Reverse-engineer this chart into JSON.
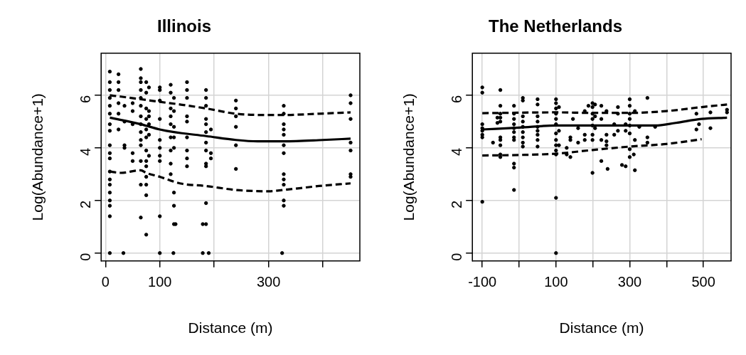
{
  "chart_data": [
    {
      "type": "scatter",
      "title": "Illinois",
      "xlabel": "Distance (m)",
      "ylabel": "Log(Abundance+1)",
      "xlim": [
        -8,
        468
      ],
      "ylim": [
        -0.3,
        7.6
      ],
      "xticks": [
        0,
        100,
        {
          "value": 200,
          "label": null
        },
        300,
        {
          "value": 400,
          "label": null
        }
      ],
      "yticks": [
        0,
        2,
        4,
        6
      ],
      "grid": true,
      "series": [
        {
          "type": "scatter",
          "marker": "circle",
          "color": "#000000",
          "x": [
            8,
            8,
            8,
            8,
            8,
            8,
            8,
            8,
            8,
            8,
            8,
            8,
            8,
            8,
            8,
            8,
            8,
            8,
            8,
            24,
            24,
            24,
            24,
            24,
            24,
            33,
            35,
            35,
            35,
            35,
            50,
            50,
            50,
            50,
            50,
            65,
            65,
            65,
            65,
            65,
            65,
            65,
            65,
            65,
            65,
            65,
            65,
            65,
            65,
            75,
            75,
            75,
            75,
            75,
            75,
            75,
            75,
            75,
            75,
            75,
            75,
            75,
            80,
            80,
            80,
            80,
            80,
            80,
            100,
            100,
            100,
            100,
            100,
            100,
            100,
            100,
            100,
            100,
            120,
            120,
            120,
            120,
            120,
            120,
            120,
            120,
            120,
            126,
            126,
            126,
            126,
            126,
            126,
            126,
            126,
            125,
            129,
            150,
            150,
            150,
            150,
            150,
            150,
            150,
            150,
            150,
            185,
            185,
            185,
            185,
            185,
            185,
            185,
            185,
            185,
            185,
            185,
            185,
            179,
            179,
            194,
            194,
            194,
            190,
            240,
            240,
            240,
            240,
            240,
            240,
            328,
            328,
            328,
            328,
            328,
            328,
            328,
            328,
            328,
            328,
            328,
            328,
            325,
            451,
            451,
            451,
            451,
            451,
            451,
            451
          ],
          "values": [
            6.9,
            6.5,
            6.2,
            5.9,
            5.6,
            5.3,
            4.9,
            4.65,
            4.1,
            3.8,
            3.6,
            3.1,
            2.8,
            2.6,
            2.3,
            2.0,
            1.8,
            1.4,
            0,
            6.8,
            6.5,
            6.2,
            5.7,
            5.3,
            4.7,
            0,
            5.6,
            5.0,
            4.1,
            4.0,
            5.7,
            5.4,
            4.9,
            3.8,
            3.5,
            7.0,
            6.65,
            6.5,
            6.2,
            5.9,
            5.6,
            5.2,
            4.9,
            4.6,
            4.3,
            4.1,
            3.5,
            2.6,
            1.35,
            6.5,
            6.1,
            5.5,
            5.1,
            4.7,
            4.4,
            3.9,
            3.5,
            3.3,
            2.9,
            2.6,
            2.2,
            0.7,
            6.3,
            5.4,
            5.2,
            4.9,
            4.5,
            3.7,
            6.3,
            6.2,
            5.8,
            5.1,
            4.3,
            4.0,
            3.7,
            3.5,
            1.4,
            0,
            6.4,
            6.1,
            5.5,
            5.2,
            4.9,
            4.4,
            3.9,
            3.4,
            3.0,
            5.9,
            5.4,
            4.8,
            4.4,
            4.0,
            2.3,
            1.8,
            1.1,
            0,
            1.1,
            6.5,
            6.2,
            5.9,
            5.2,
            5.0,
            4.4,
            3.9,
            3.6,
            3.3,
            6.2,
            5.9,
            5.6,
            5.1,
            4.9,
            4.6,
            4.2,
            3.9,
            3.4,
            3.3,
            1.9,
            1.1,
            0,
            1.1,
            4.7,
            3.8,
            3.6,
            0,
            5.8,
            5.5,
            5.2,
            4.8,
            4.1,
            3.2,
            5.6,
            5.3,
            4.9,
            4.7,
            4.5,
            4.1,
            3.8,
            3.0,
            2.8,
            2.6,
            2.0,
            1.8,
            0,
            6.0,
            5.7,
            5.1,
            4.2,
            3.9,
            3.0,
            2.9
          ]
        },
        {
          "type": "line",
          "marker": "none",
          "line_style": "solid",
          "color": "#000000",
          "x": [
            8,
            65,
            100,
            126,
            185,
            240,
            280,
            328,
            400,
            451
          ],
          "values": [
            5.15,
            4.9,
            4.7,
            4.6,
            4.45,
            4.3,
            4.25,
            4.25,
            4.3,
            4.35
          ]
        },
        {
          "type": "line",
          "marker": "none",
          "line_style": "dashed",
          "color": "#000000",
          "x": [
            8,
            28,
            65,
            100,
            137,
            185,
            240,
            300,
            328,
            393,
            451
          ],
          "values": [
            6.0,
            5.95,
            5.85,
            5.75,
            5.65,
            5.5,
            5.3,
            5.25,
            5.25,
            5.3,
            5.35
          ]
        },
        {
          "type": "line",
          "marker": "none",
          "line_style": "dashed",
          "color": "#000000",
          "x": [
            8,
            28,
            65,
            75,
            100,
            137,
            185,
            240,
            300,
            328,
            393,
            451
          ],
          "values": [
            3.1,
            3.05,
            3.15,
            3.05,
            2.9,
            2.65,
            2.55,
            2.4,
            2.35,
            2.4,
            2.55,
            2.65
          ]
        }
      ]
    },
    {
      "type": "scatter",
      "title": "The Netherlands",
      "xlabel": "Distance (m)",
      "ylabel": "Log(Abundance+1)",
      "xlim": [
        -127,
        575
      ],
      "ylim": [
        -0.3,
        7.6
      ],
      "xticks": [
        -100,
        {
          "value": 0,
          "label": null
        },
        100,
        {
          "value": 200,
          "label": null
        },
        300,
        {
          "value": 400,
          "label": null
        },
        500
      ],
      "yticks": [
        0,
        2,
        4,
        6
      ],
      "grid": true,
      "series": [
        {
          "type": "scatter",
          "marker": "circle",
          "color": "#000000",
          "x": [
            -100,
            -100,
            -100,
            -100,
            -100,
            -100,
            -100,
            -100,
            -71,
            -59,
            -59,
            -51,
            -51,
            -51,
            -51,
            -51,
            -51,
            -51,
            -51,
            -51,
            -51,
            -14,
            -14,
            -14,
            -14,
            -14,
            -14,
            -14,
            -14,
            -14,
            -14,
            -14,
            10,
            10,
            10,
            10,
            10,
            10,
            10,
            10,
            10,
            50,
            50,
            50,
            50,
            50,
            50,
            50,
            50,
            50,
            100,
            100,
            100,
            100,
            100,
            100,
            100,
            100,
            100,
            100,
            100,
            100,
            100,
            108,
            108,
            108,
            129,
            129,
            139,
            139,
            139,
            146,
            160,
            160,
            178,
            178,
            178,
            188,
            199,
            199,
            199,
            199,
            199,
            199,
            199,
            199,
            206,
            206,
            206,
            223,
            223,
            223,
            223,
            237,
            237,
            237,
            237,
            240,
            258,
            258,
            268,
            268,
            268,
            279,
            289,
            289,
            289,
            300,
            300,
            300,
            300,
            300,
            300,
            300,
            300,
            311,
            314,
            314,
            314,
            326,
            348,
            348,
            348,
            369,
            481,
            481,
            488,
            519,
            519,
            564,
            564
          ],
          "values": [
            6.3,
            6.1,
            4.9,
            4.75,
            4.65,
            4.5,
            4.4,
            1.95,
            4.2,
            5.15,
            4.95,
            6.2,
            5.6,
            5.3,
            5.15,
            5.0,
            4.4,
            4.3,
            4.1,
            3.75,
            3.65,
            5.6,
            5.3,
            5.1,
            4.9,
            4.75,
            4.6,
            4.4,
            4.3,
            3.4,
            3.25,
            2.4,
            5.9,
            5.8,
            5.2,
            5.0,
            4.8,
            4.6,
            4.4,
            4.2,
            4.05,
            5.85,
            5.65,
            5.2,
            5.0,
            4.8,
            4.65,
            4.5,
            4.3,
            4.05,
            5.85,
            5.7,
            5.5,
            5.3,
            5.1,
            4.9,
            4.55,
            4.3,
            4.1,
            3.9,
            3.75,
            2.1,
            0,
            5.55,
            4.65,
            4.1,
            4.0,
            3.75,
            4.4,
            4.3,
            3.65,
            5.1,
            4.75,
            4.2,
            5.4,
            4.5,
            4.3,
            5.6,
            5.7,
            5.55,
            5.3,
            5.1,
            4.85,
            4.5,
            4.3,
            3.05,
            5.65,
            5.2,
            4.75,
            5.6,
            5.1,
            4.3,
            3.5,
            5.4,
            4.5,
            4.25,
            4.1,
            3.2,
            4.9,
            4.5,
            5.55,
            5.3,
            4.65,
            3.35,
            4.9,
            4.65,
            3.3,
            5.85,
            5.6,
            5.3,
            5.1,
            4.85,
            4.55,
            3.95,
            3.65,
            3.75,
            5.4,
            4.3,
            3.15,
            4.8,
            5.9,
            4.4,
            4.2,
            4.8,
            5.3,
            4.7,
            4.9,
            5.35,
            4.75,
            5.45,
            5.35
          ]
        },
        {
          "type": "line",
          "marker": "none",
          "line_style": "solid",
          "color": "#000000",
          "x": [
            -100,
            0,
            100,
            200,
            300,
            369,
            425,
            495,
            564
          ],
          "values": [
            4.7,
            4.77,
            4.85,
            4.85,
            4.85,
            4.85,
            4.95,
            5.1,
            5.15
          ]
        },
        {
          "type": "line",
          "marker": "none",
          "line_style": "dashed",
          "color": "#000000",
          "x": [
            -100,
            100,
            200,
            300,
            400,
            495,
            564
          ],
          "values": [
            5.32,
            5.35,
            5.33,
            5.33,
            5.4,
            5.55,
            5.65
          ]
        },
        {
          "type": "line",
          "marker": "none",
          "line_style": "dashed",
          "color": "#000000",
          "x": [
            -100,
            0,
            100,
            200,
            300,
            400,
            495
          ],
          "values": [
            3.71,
            3.73,
            3.78,
            3.92,
            4.05,
            4.15,
            4.33
          ]
        }
      ]
    }
  ]
}
